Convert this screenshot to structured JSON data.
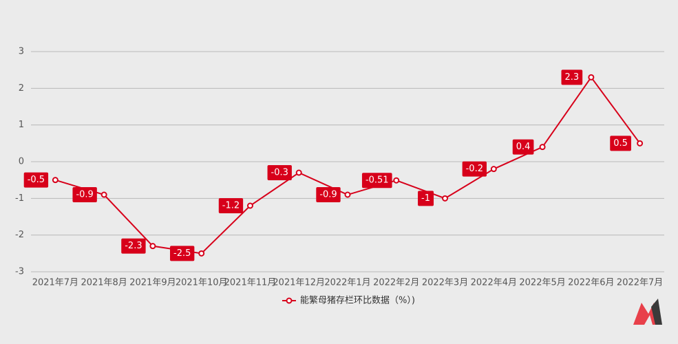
{
  "chart_data": {
    "type": "line",
    "categories": [
      "2021年7月",
      "2021年8月",
      "2021年9月",
      "2021年10月",
      "2021年11月",
      "2021年12月",
      "2022年1月",
      "2022年2月",
      "2022年3月",
      "2022年4月",
      "2022年5月",
      "2022年6月",
      "2022年7月"
    ],
    "series": [
      {
        "name": "能繁母猪存栏环比数据（%）)",
        "color": "#d7001a",
        "values": [
          -0.5,
          -0.9,
          -2.3,
          -2.5,
          -1.2,
          -0.3,
          -0.9,
          -0.51,
          -1,
          -0.2,
          0.4,
          2.3,
          0.5
        ]
      }
    ],
    "ylim": [
      -3,
      3
    ],
    "yticks": [
      -3,
      -2,
      -1,
      0,
      1,
      2,
      3
    ],
    "grid": true
  }
}
